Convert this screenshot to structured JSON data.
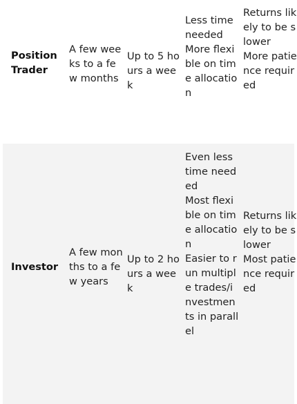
{
  "rows": [
    {
      "role": "Position Trader",
      "duration": "A few weeks to a few months",
      "time": "Up to 5 hours a week",
      "pros": "Less time needed\nMore flexible on time allocation",
      "cons": "Returns likely to be slower\nMore patience required"
    },
    {
      "role": "Investor",
      "duration": "A few months to a few years",
      "time": "Up to 2 hours a week",
      "pros": "Even less time needed\nMost flexible on time allocation\nEasier to run multiple trades/investments in parallel",
      "cons": "Returns likely to be slower\nMost patience required"
    }
  ]
}
